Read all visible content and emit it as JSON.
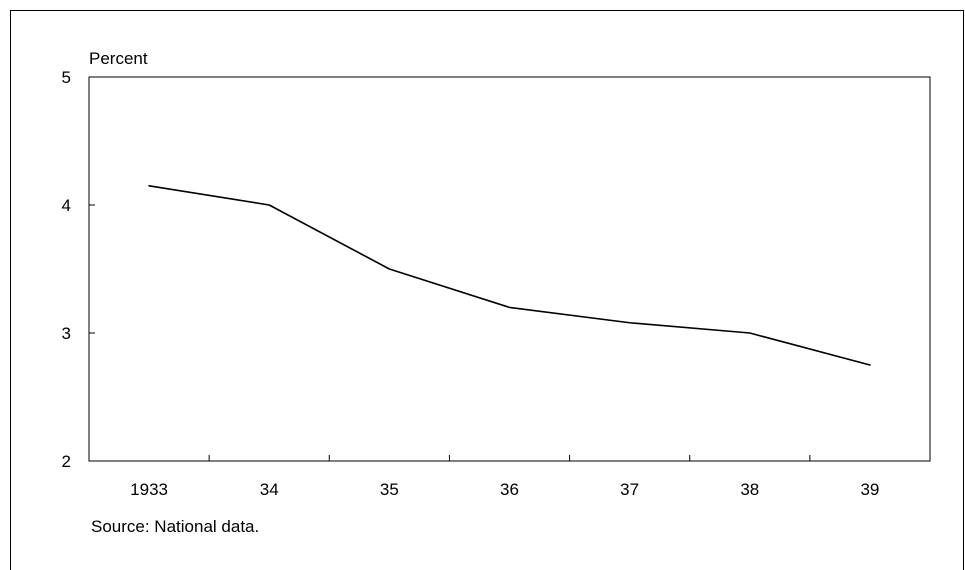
{
  "chart_data": {
    "type": "line",
    "ylabel": "Percent",
    "categories": [
      "1933",
      "34",
      "35",
      "36",
      "37",
      "38",
      "39"
    ],
    "series": [
      {
        "values": [
          4.15,
          4.0,
          3.5,
          3.2,
          3.08,
          3.0,
          2.75
        ]
      }
    ],
    "ylim": [
      2,
      5
    ],
    "yticks": [
      2,
      3,
      4,
      5
    ],
    "grid": false,
    "line_color": "#000000"
  },
  "source_note": "Source: National data."
}
